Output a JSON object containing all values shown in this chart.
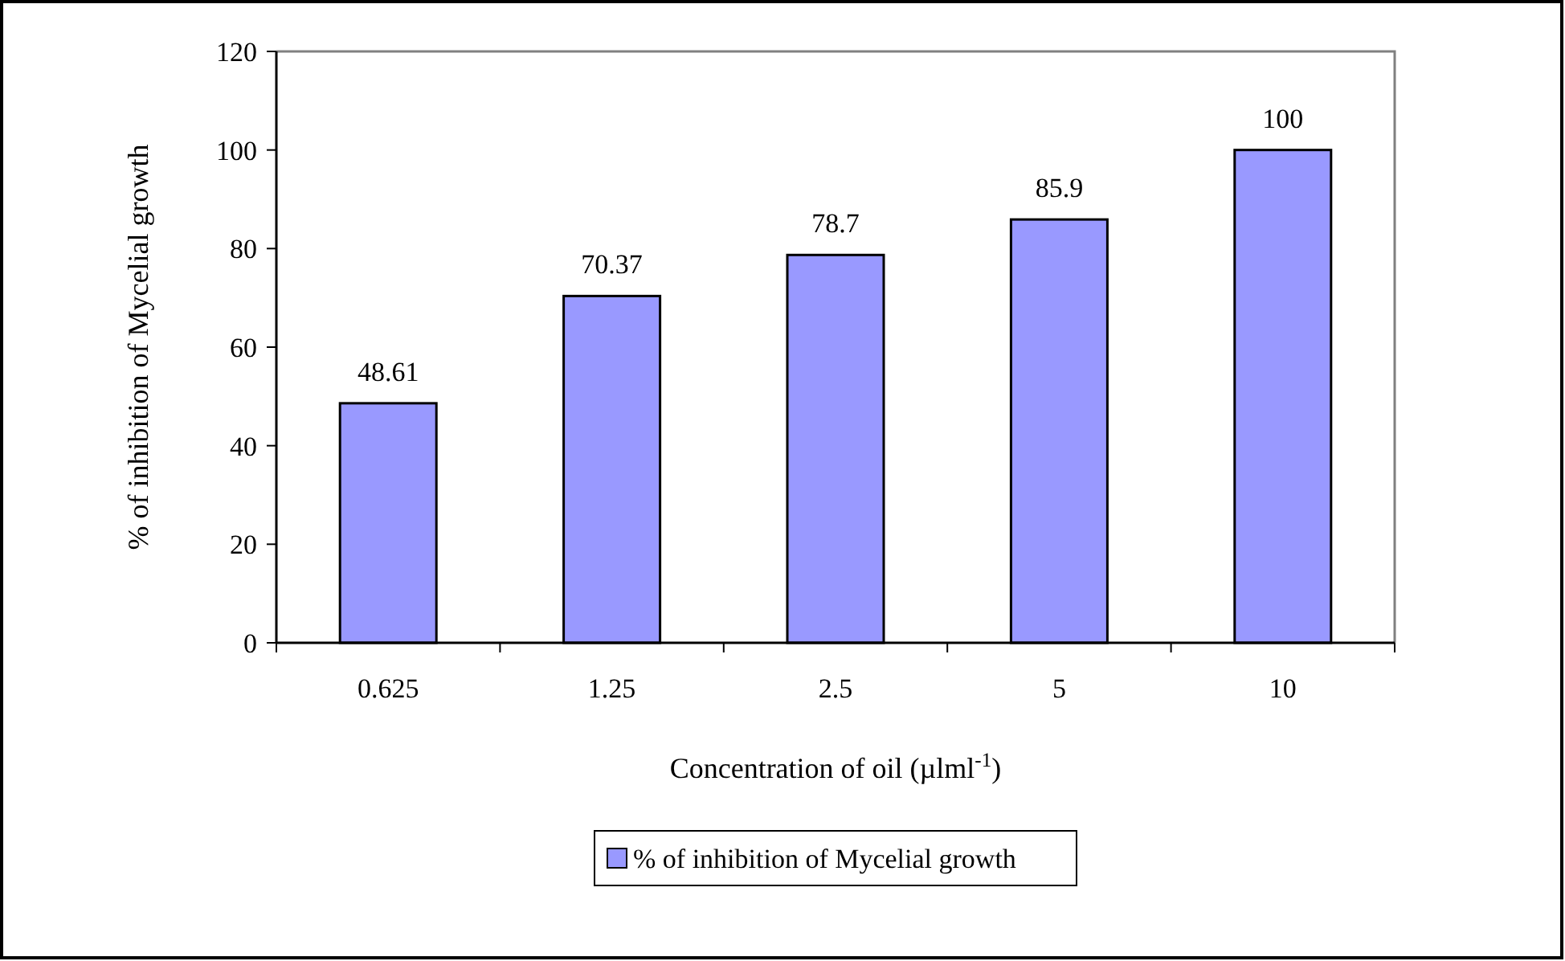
{
  "chart_data": {
    "type": "bar",
    "xlabel": "Concentration of oil (µlml$^{-1}$)",
    "ylabel": "% of inhibition of Mycelial growth",
    "categories": [
      "0.625",
      "1.25",
      "2.5",
      "5",
      "10"
    ],
    "series": [
      {
        "name": "% of inhibition of Mycelial growth",
        "color": "#9999ff",
        "values": [
          48.61,
          70.37,
          78.7,
          85.9,
          100
        ]
      }
    ],
    "ylim": [
      0,
      120
    ],
    "yticks": [
      0,
      20,
      40,
      60,
      80,
      100,
      120
    ],
    "data_labels": true,
    "legend": "bottom",
    "grid": false
  }
}
